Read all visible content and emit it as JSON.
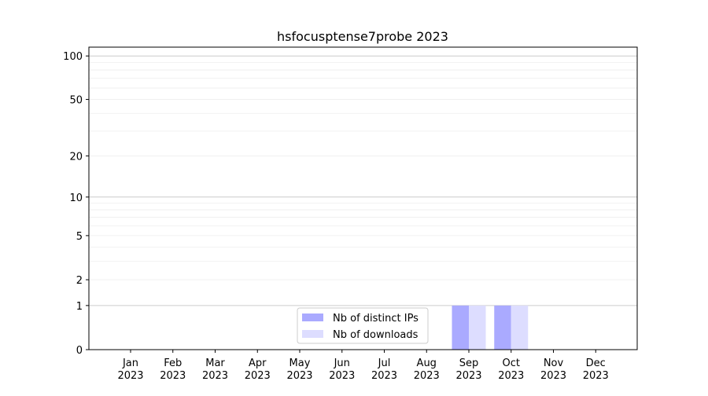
{
  "chart_data": {
    "type": "bar",
    "title": "hsfocusptense7probe 2023",
    "categories": [
      "Jan\n2023",
      "Feb\n2023",
      "Mar\n2023",
      "Apr\n2023",
      "May\n2023",
      "Jun\n2023",
      "Jul\n2023",
      "Aug\n2023",
      "Sep\n2023",
      "Oct\n2023",
      "Nov\n2023",
      "Dec\n2023"
    ],
    "series": [
      {
        "name": "Nb of distinct IPs",
        "color": "#aaaaff",
        "values": [
          0,
          0,
          0,
          0,
          0,
          0,
          0,
          0,
          1,
          1,
          0,
          0
        ]
      },
      {
        "name": "Nb of downloads",
        "color": "#ddddff",
        "values": [
          0,
          0,
          0,
          0,
          0,
          0,
          0,
          0,
          1,
          1,
          0,
          0
        ]
      }
    ],
    "yscale": "symlog",
    "yticks": [
      0,
      1,
      2,
      5,
      10,
      20,
      50,
      100
    ],
    "ylim": [
      0,
      115
    ],
    "grid": true,
    "legend_position": "lower-center",
    "xlabel": "",
    "ylabel": ""
  }
}
